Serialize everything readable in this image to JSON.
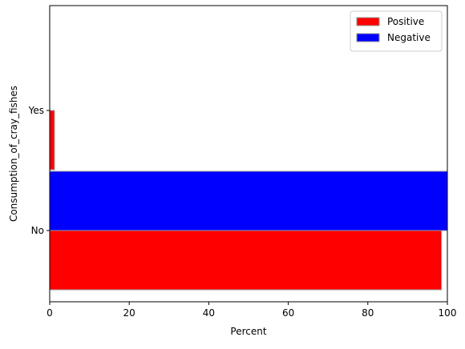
{
  "chart_data": {
    "type": "bar",
    "orientation": "horizontal",
    "categories": [
      "No",
      "Yes"
    ],
    "series": [
      {
        "name": "Positive",
        "values": [
          98.5,
          1.2
        ],
        "color": "#ff0000"
      },
      {
        "name": "Negative",
        "values": [
          100,
          0
        ],
        "color": "#0000ff"
      }
    ],
    "xlabel": "Percent",
    "ylabel": "Consumption_of_cray_fishes",
    "xlim": [
      0,
      100
    ],
    "xticks": [
      "0",
      "20",
      "40",
      "60",
      "80",
      "100"
    ],
    "grid": false,
    "legend_position": "top-right"
  }
}
